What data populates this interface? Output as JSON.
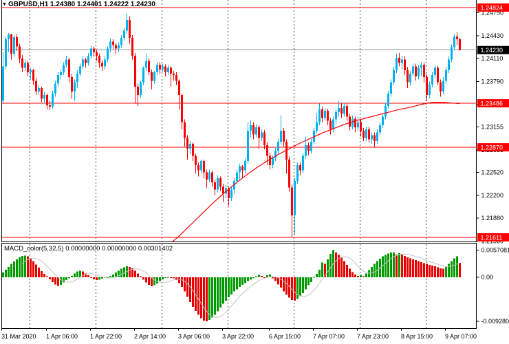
{
  "window": {
    "marker": "▼",
    "title": "GBPUSD,H1 1.24380 1.24401 1.24222 1.24230"
  },
  "colors": {
    "background": "#ffffff",
    "bull_candle": "#00B0F0",
    "bear_candle": "#FF0000",
    "price_line_red": "#FF0000",
    "bid_line": "#7D8B97",
    "ma_line": "#FF0000",
    "macd_up": "#009900",
    "macd_down": "#E60000",
    "macd_signal": "#C4C4C4",
    "separator": "#3C3C3C",
    "badge_red_bg": "#FF0000",
    "badge_black_bg": "#000000",
    "badge_text": "#ffffff",
    "axis_text": "#000000",
    "border": "#000000"
  },
  "chart_data": {
    "type": "candlestick",
    "symbol": "GBPUSD",
    "timeframe": "H1",
    "ohlc_current": {
      "open": "1.24380",
      "high": "1.24401",
      "low": "1.24222",
      "close": "1.24230"
    },
    "current_price": 1.2423,
    "horizontal_lines": [
      1.24824,
      1.23486,
      1.2287,
      1.21611
    ],
    "y_axis": {
      "ticks": [
        "1.24750",
        "1.24430",
        "1.24110",
        "1.23790",
        "1.23470",
        "1.23155",
        "1.22835",
        "1.22520",
        "1.22200",
        "1.21880",
        "1.21560"
      ],
      "badges": [
        {
          "label": "1.24824",
          "style": "red"
        },
        {
          "label": "1.24230",
          "style": "black"
        },
        {
          "label": "1.23486",
          "style": "red"
        },
        {
          "label": "1.22870",
          "style": "red"
        },
        {
          "label": "1.21611",
          "style": "red"
        }
      ]
    },
    "x_axis": {
      "labels": [
        "31 Mar 2020",
        "1 Apr 06:00",
        "1 Apr 22:00",
        "2 Apr 14:00",
        "3 Apr 06:00",
        "3 Apr 22:00",
        "6 Apr 15:00",
        "7 Apr 07:00",
        "7 Apr 23:00",
        "8 Apr 15:00",
        "9 Apr 07:00"
      ]
    },
    "candles": [
      [
        1.2352,
        1.242,
        1.2349,
        1.24
      ],
      [
        1.24,
        1.2442,
        1.2396,
        1.2438
      ],
      [
        1.2438,
        1.2447,
        1.242,
        1.2445
      ],
      [
        1.2445,
        1.2446,
        1.241,
        1.2418
      ],
      [
        1.2418,
        1.2444,
        1.2414,
        1.2441
      ],
      [
        1.2441,
        1.2445,
        1.2422,
        1.2428
      ],
      [
        1.2428,
        1.2432,
        1.2405,
        1.2411
      ],
      [
        1.2411,
        1.2416,
        1.2392,
        1.2398
      ],
      [
        1.2398,
        1.241,
        1.2394,
        1.2405
      ],
      [
        1.2405,
        1.2408,
        1.2386,
        1.2392
      ],
      [
        1.2392,
        1.2398,
        1.2382,
        1.2395
      ],
      [
        1.2395,
        1.2397,
        1.2374,
        1.238
      ],
      [
        1.238,
        1.2384,
        1.236,
        1.2365
      ],
      [
        1.2365,
        1.2374,
        1.236,
        1.237
      ],
      [
        1.237,
        1.2372,
        1.235,
        1.2355
      ],
      [
        1.2355,
        1.2364,
        1.2348,
        1.236
      ],
      [
        1.236,
        1.2362,
        1.234,
        1.2346
      ],
      [
        1.2346,
        1.2352,
        1.2339,
        1.2344
      ],
      [
        1.2344,
        1.2366,
        1.2341,
        1.2362
      ],
      [
        1.2362,
        1.238,
        1.2358,
        1.2376
      ],
      [
        1.2376,
        1.2392,
        1.2372,
        1.2388
      ],
      [
        1.2388,
        1.2396,
        1.2382,
        1.2392
      ],
      [
        1.2392,
        1.2406,
        1.2388,
        1.2402
      ],
      [
        1.2402,
        1.2415,
        1.2398,
        1.241
      ],
      [
        1.241,
        1.2412,
        1.2378,
        1.2385
      ],
      [
        1.2385,
        1.239,
        1.2355,
        1.2365
      ],
      [
        1.2365,
        1.2382,
        1.2352,
        1.2378
      ],
      [
        1.2378,
        1.2395,
        1.237,
        1.239
      ],
      [
        1.239,
        1.2404,
        1.2386,
        1.24
      ],
      [
        1.24,
        1.2414,
        1.2396,
        1.241
      ],
      [
        1.241,
        1.2412,
        1.2398,
        1.2405
      ],
      [
        1.2405,
        1.2419,
        1.2401,
        1.2415
      ],
      [
        1.2415,
        1.2429,
        1.2411,
        1.2425
      ],
      [
        1.2425,
        1.2428,
        1.2414,
        1.242
      ],
      [
        1.242,
        1.2423,
        1.2408,
        1.2415
      ],
      [
        1.2415,
        1.2418,
        1.2398,
        1.2405
      ],
      [
        1.2405,
        1.2409,
        1.2394,
        1.24
      ],
      [
        1.24,
        1.2414,
        1.2396,
        1.241
      ],
      [
        1.241,
        1.2428,
        1.2406,
        1.2425
      ],
      [
        1.2425,
        1.2439,
        1.242,
        1.2435
      ],
      [
        1.2435,
        1.2438,
        1.2424,
        1.243
      ],
      [
        1.243,
        1.2433,
        1.2418,
        1.2425
      ],
      [
        1.2425,
        1.2434,
        1.242,
        1.243
      ],
      [
        1.243,
        1.2444,
        1.2426,
        1.244
      ],
      [
        1.244,
        1.2454,
        1.2436,
        1.245
      ],
      [
        1.245,
        1.2474,
        1.2446,
        1.2465
      ],
      [
        1.2465,
        1.247,
        1.2432,
        1.244
      ],
      [
        1.244,
        1.2444,
        1.241,
        1.2415
      ],
      [
        1.2415,
        1.2419,
        1.2348,
        1.2372
      ],
      [
        1.2372,
        1.2376,
        1.2345,
        1.236
      ],
      [
        1.236,
        1.238,
        1.2356,
        1.2378
      ],
      [
        1.2378,
        1.24,
        1.2374,
        1.2398
      ],
      [
        1.2398,
        1.2418,
        1.2394,
        1.2408
      ],
      [
        1.2408,
        1.2411,
        1.2388,
        1.2392
      ],
      [
        1.2392,
        1.2396,
        1.2368,
        1.238
      ],
      [
        1.238,
        1.2394,
        1.2376,
        1.2392
      ],
      [
        1.2392,
        1.2406,
        1.2388,
        1.2402
      ],
      [
        1.2402,
        1.2406,
        1.239,
        1.2396
      ],
      [
        1.2396,
        1.2404,
        1.2392,
        1.24
      ],
      [
        1.24,
        1.2403,
        1.2386,
        1.2392
      ],
      [
        1.2392,
        1.2402,
        1.2388,
        1.2398
      ],
      [
        1.2398,
        1.24,
        1.2372,
        1.239
      ],
      [
        1.239,
        1.2394,
        1.238,
        1.2388
      ],
      [
        1.2388,
        1.2392,
        1.2374,
        1.238
      ],
      [
        1.238,
        1.2382,
        1.234,
        1.236
      ],
      [
        1.236,
        1.2362,
        1.2312,
        1.2322
      ],
      [
        1.2322,
        1.2326,
        1.2288,
        1.23
      ],
      [
        1.23,
        1.2304,
        1.227,
        1.2285
      ],
      [
        1.2285,
        1.2296,
        1.2278,
        1.2292
      ],
      [
        1.2292,
        1.2294,
        1.2268,
        1.2275
      ],
      [
        1.2275,
        1.2278,
        1.225,
        1.2262
      ],
      [
        1.2262,
        1.2266,
        1.2246,
        1.2255
      ],
      [
        1.2255,
        1.227,
        1.225,
        1.2268
      ],
      [
        1.2268,
        1.227,
        1.2244,
        1.2252
      ],
      [
        1.2252,
        1.2256,
        1.223,
        1.2242
      ],
      [
        1.2242,
        1.2256,
        1.2238,
        1.2252
      ],
      [
        1.2252,
        1.2254,
        1.2232,
        1.2238
      ],
      [
        1.2238,
        1.2242,
        1.222,
        1.2228
      ],
      [
        1.2228,
        1.2248,
        1.2224,
        1.2244
      ],
      [
        1.2244,
        1.2246,
        1.2226,
        1.2232
      ],
      [
        1.2232,
        1.2236,
        1.221,
        1.2222
      ],
      [
        1.2222,
        1.2234,
        1.2216,
        1.223
      ],
      [
        1.223,
        1.2232,
        1.2205,
        1.2216
      ],
      [
        1.2216,
        1.2232,
        1.2212,
        1.2228
      ],
      [
        1.2228,
        1.2244,
        1.2222,
        1.224
      ],
      [
        1.224,
        1.2256,
        1.2236,
        1.2252
      ],
      [
        1.2252,
        1.2264,
        1.2242,
        1.226
      ],
      [
        1.226,
        1.2262,
        1.2244,
        1.2255
      ],
      [
        1.2255,
        1.2272,
        1.225,
        1.2268
      ],
      [
        1.2268,
        1.2322,
        1.2264,
        1.231
      ],
      [
        1.231,
        1.2325,
        1.23,
        1.2318
      ],
      [
        1.2318,
        1.2322,
        1.2298,
        1.2305
      ],
      [
        1.2305,
        1.2319,
        1.2301,
        1.2315
      ],
      [
        1.2315,
        1.2318,
        1.2285,
        1.23
      ],
      [
        1.23,
        1.2312,
        1.2296,
        1.2308
      ],
      [
        1.2308,
        1.2311,
        1.2284,
        1.229
      ],
      [
        1.229,
        1.2294,
        1.2262,
        1.2275
      ],
      [
        1.2275,
        1.2279,
        1.2256,
        1.2262
      ],
      [
        1.2262,
        1.2276,
        1.2258,
        1.2272
      ],
      [
        1.2272,
        1.2286,
        1.2268,
        1.2282
      ],
      [
        1.2282,
        1.2299,
        1.2278,
        1.2295
      ],
      [
        1.2295,
        1.2332,
        1.2291,
        1.231
      ],
      [
        1.231,
        1.2314,
        1.2288,
        1.2295
      ],
      [
        1.2295,
        1.2298,
        1.225,
        1.227
      ],
      [
        1.227,
        1.2274,
        1.2225,
        1.2231
      ],
      [
        1.2231,
        1.2235,
        1.2162,
        1.2192
      ],
      [
        1.2192,
        1.2244,
        1.2165,
        1.224
      ],
      [
        1.224,
        1.2266,
        1.2236,
        1.2262
      ],
      [
        1.2262,
        1.2266,
        1.2248,
        1.2255
      ],
      [
        1.2255,
        1.2279,
        1.2251,
        1.2275
      ],
      [
        1.2275,
        1.2302,
        1.2271,
        1.229
      ],
      [
        1.229,
        1.2294,
        1.2276,
        1.2282
      ],
      [
        1.2282,
        1.2299,
        1.2278,
        1.2295
      ],
      [
        1.2295,
        1.2314,
        1.2291,
        1.231
      ],
      [
        1.231,
        1.2335,
        1.2306,
        1.2322
      ],
      [
        1.2322,
        1.2348,
        1.2318,
        1.234
      ],
      [
        1.234,
        1.2344,
        1.2322,
        1.2328
      ],
      [
        1.2328,
        1.2342,
        1.2324,
        1.2338
      ],
      [
        1.2338,
        1.2341,
        1.2318,
        1.2324
      ],
      [
        1.2324,
        1.2328,
        1.2305,
        1.2312
      ],
      [
        1.2312,
        1.233,
        1.2308,
        1.2326
      ],
      [
        1.2326,
        1.234,
        1.232,
        1.2336
      ],
      [
        1.2336,
        1.2352,
        1.233,
        1.2342
      ],
      [
        1.2342,
        1.2348,
        1.2328,
        1.2334
      ],
      [
        1.2334,
        1.2349,
        1.233,
        1.2345
      ],
      [
        1.2345,
        1.2348,
        1.2324,
        1.233
      ],
      [
        1.233,
        1.2334,
        1.231,
        1.2316
      ],
      [
        1.2316,
        1.2331,
        1.2312,
        1.2327
      ],
      [
        1.2327,
        1.233,
        1.2308,
        1.2315
      ],
      [
        1.2315,
        1.2329,
        1.2311,
        1.2322
      ],
      [
        1.2322,
        1.2326,
        1.2302,
        1.231
      ],
      [
        1.231,
        1.2314,
        1.2296,
        1.23
      ],
      [
        1.23,
        1.2316,
        1.2296,
        1.2312
      ],
      [
        1.2312,
        1.2316,
        1.2294,
        1.2298
      ],
      [
        1.2298,
        1.2308,
        1.2292,
        1.2304
      ],
      [
        1.2304,
        1.2308,
        1.2287,
        1.2296
      ],
      [
        1.2296,
        1.2312,
        1.2292,
        1.2308
      ],
      [
        1.2308,
        1.2322,
        1.2304,
        1.2318
      ],
      [
        1.2318,
        1.2334,
        1.2314,
        1.233
      ],
      [
        1.233,
        1.2349,
        1.2326,
        1.2345
      ],
      [
        1.2345,
        1.2366,
        1.2341,
        1.2362
      ],
      [
        1.2362,
        1.2382,
        1.2358,
        1.2378
      ],
      [
        1.2378,
        1.2399,
        1.2374,
        1.2395
      ],
      [
        1.2395,
        1.2418,
        1.2391,
        1.2412
      ],
      [
        1.2412,
        1.2419,
        1.24,
        1.2405
      ],
      [
        1.2405,
        1.2415,
        1.2396,
        1.241
      ],
      [
        1.241,
        1.2414,
        1.2388,
        1.2395
      ],
      [
        1.2395,
        1.2399,
        1.237,
        1.2378
      ],
      [
        1.2378,
        1.2394,
        1.2373,
        1.239
      ],
      [
        1.239,
        1.2404,
        1.2386,
        1.24
      ],
      [
        1.24,
        1.2404,
        1.238,
        1.2386
      ],
      [
        1.2386,
        1.2402,
        1.2382,
        1.2398
      ],
      [
        1.2398,
        1.2406,
        1.2386,
        1.2402
      ],
      [
        1.2402,
        1.2406,
        1.2378,
        1.2385
      ],
      [
        1.2385,
        1.2389,
        1.2352,
        1.236
      ],
      [
        1.236,
        1.2379,
        1.2356,
        1.2375
      ],
      [
        1.2375,
        1.2392,
        1.2371,
        1.2388
      ],
      [
        1.2388,
        1.2402,
        1.2384,
        1.2398
      ],
      [
        1.2398,
        1.2401,
        1.2374,
        1.2378
      ],
      [
        1.2378,
        1.2382,
        1.2358,
        1.2365
      ],
      [
        1.2365,
        1.2385,
        1.2361,
        1.238
      ],
      [
        1.238,
        1.2399,
        1.2376,
        1.2395
      ],
      [
        1.2395,
        1.2414,
        1.2391,
        1.241
      ],
      [
        1.241,
        1.2431,
        1.2406,
        1.2427
      ],
      [
        1.2427,
        1.2446,
        1.2423,
        1.2442
      ],
      [
        1.2442,
        1.2448,
        1.243,
        1.2438
      ],
      [
        1.2438,
        1.24401,
        1.24222,
        1.2423
      ]
    ],
    "ma_line": {
      "name": "moving-average",
      "points": [
        [
          60,
          1.215
        ],
        [
          64,
          1.2163
        ],
        [
          68,
          1.2178
        ],
        [
          72,
          1.2193
        ],
        [
          76,
          1.2208
        ],
        [
          80,
          1.2222
        ],
        [
          84,
          1.2235
        ],
        [
          88,
          1.2247
        ],
        [
          92,
          1.2258
        ],
        [
          96,
          1.2268
        ],
        [
          100,
          1.2277
        ],
        [
          104,
          1.2285
        ],
        [
          108,
          1.2293
        ],
        [
          112,
          1.23
        ],
        [
          116,
          1.2307
        ],
        [
          120,
          1.2313
        ],
        [
          124,
          1.2319
        ],
        [
          128,
          1.2324
        ],
        [
          132,
          1.2328
        ],
        [
          136,
          1.2332
        ],
        [
          140,
          1.2336
        ],
        [
          144,
          1.234
        ],
        [
          148,
          1.2343
        ],
        [
          152,
          1.2347
        ],
        [
          156,
          1.235
        ],
        [
          160,
          1.235
        ],
        [
          163,
          1.2349
        ],
        [
          166,
          1.2348
        ]
      ]
    },
    "macd": {
      "values_line": "MACD_color(5,32,5) 0.00000000 0.00000000 0.00301402",
      "name": "MACD_color",
      "params": "5,32,5",
      "current_values": [
        "0.00000000",
        "0.00000000",
        "0.00301402"
      ],
      "y_ticks": [
        {
          "label": "0.0057081",
          "value": 0.0057081
        },
        {
          "label": "0.00",
          "value": 0.0
        },
        {
          "label": "-0.009280",
          "value": -0.00928
        }
      ],
      "histogram": [
        0.001,
        0.0016,
        0.0022,
        0.0028,
        0.0033,
        0.0038,
        0.0042,
        0.0045,
        0.0046,
        0.0044,
        0.004,
        0.0034,
        0.0027,
        0.002,
        0.0013,
        0.0007,
        0.0002,
        -0.0004,
        -0.001,
        -0.0015,
        -0.0018,
        -0.0016,
        -0.0011,
        -0.0006,
        -0.0002,
        0.0003,
        0.0008,
        0.0012,
        0.0014,
        0.0012,
        0.0008,
        0.0004,
        0.0,
        -0.0004,
        -0.0006,
        -0.0005,
        -0.0003,
        -0.0001,
        0.0001,
        0.0003,
        0.0006,
        0.001,
        0.0014,
        0.0018,
        0.0021,
        0.0023,
        0.0022,
        0.0019,
        0.0014,
        0.0008,
        0.0002,
        -0.0005,
        -0.0011,
        -0.0016,
        -0.0019,
        -0.0017,
        -0.0013,
        -0.0008,
        -0.0004,
        -0.0001,
        0.0001,
        0.0,
        -0.0002,
        -0.0006,
        -0.0012,
        -0.002,
        -0.003,
        -0.0041,
        -0.0052,
        -0.0062,
        -0.0071,
        -0.0079,
        -0.0086,
        -0.0091,
        -0.00928,
        -0.009,
        -0.0085,
        -0.0079,
        -0.0072,
        -0.0064,
        -0.0056,
        -0.0049,
        -0.0042,
        -0.0036,
        -0.003,
        -0.0025,
        -0.002,
        -0.0016,
        -0.0012,
        -0.0008,
        -0.0005,
        -0.0002,
        0.0002,
        0.0005,
        0.0003,
        -0.0001,
        0.0004,
        0.0006,
        -0.0002,
        -0.0008,
        -0.0015,
        -0.0022,
        -0.003,
        -0.0037,
        -0.0043,
        -0.0048,
        -0.0049,
        -0.0046,
        -0.004,
        -0.0033,
        -0.0025,
        -0.0017,
        -0.001,
        0.0001,
        0.0007,
        0.0016,
        0.0031,
        0.0028,
        0.0038,
        0.0049,
        0.0057081,
        0.0052,
        0.0047,
        0.0041,
        0.0034,
        0.0026,
        0.0018,
        0.0011,
        0.0006,
        0.0003,
        0.0005,
        0.0002,
        0.0008,
        0.0015,
        0.0022,
        0.0028,
        0.0034,
        0.0039,
        0.0044,
        0.0047,
        0.005,
        0.0052,
        0.0052,
        0.0048,
        0.0051,
        0.0048,
        0.0045,
        0.0042,
        0.004,
        0.0038,
        0.0036,
        0.0034,
        0.0032,
        0.003,
        0.0028,
        0.0026,
        0.0025,
        0.0023,
        0.0021,
        0.0019,
        0.0018,
        0.0022,
        0.0028,
        0.0034,
        0.004,
        0.0044,
        0.003014
      ]
    }
  }
}
